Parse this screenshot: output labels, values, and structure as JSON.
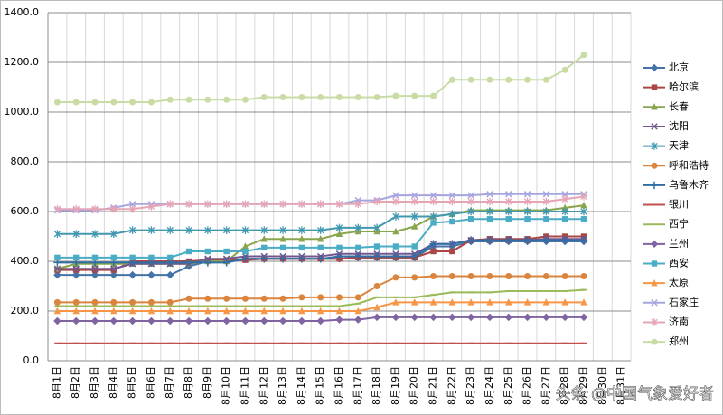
{
  "chart_data": {
    "type": "line",
    "categories": [
      "8月1日",
      "8月2日",
      "8月3日",
      "8月4日",
      "8月5日",
      "8月6日",
      "8月7日",
      "8月8日",
      "8月9日",
      "8月10日",
      "8月11日",
      "8月12日",
      "8月13日",
      "8月14日",
      "8月15日",
      "8月16日",
      "8月17日",
      "8月18日",
      "8月19日",
      "8月20日",
      "8月21日",
      "8月22日",
      "8月23日",
      "8月24日",
      "8月25日",
      "8月26日",
      "8月27日",
      "8月28日",
      "8月29日",
      "8月30日",
      "8月31日"
    ],
    "ylim": [
      0,
      1400
    ],
    "yticks": [
      {
        "value": 0,
        "label": "0.0"
      },
      {
        "value": 200,
        "label": "200.0"
      },
      {
        "value": 400,
        "label": "400.0"
      },
      {
        "value": 600,
        "label": "600.0"
      },
      {
        "value": 800,
        "label": "800.0"
      },
      {
        "value": 1000,
        "label": "1000.0"
      },
      {
        "value": 1200,
        "label": "1200.0"
      },
      {
        "value": 1400,
        "label": "1400.0"
      }
    ],
    "grid": true,
    "legend": "right",
    "watermark": "头条 @中国气象爱好者",
    "series": [
      {
        "name": "北京",
        "color": "#4572a7",
        "marker": "diamond",
        "values": [
          345,
          345,
          345,
          345,
          345,
          345,
          345,
          380,
          400,
          400,
          410,
          410,
          410,
          410,
          410,
          410,
          415,
          415,
          415,
          415,
          460,
          460,
          480,
          480,
          480,
          480,
          480,
          480,
          480,
          null,
          null
        ]
      },
      {
        "name": "哈尔滨",
        "color": "#aa4643",
        "marker": "square",
        "values": [
          365,
          365,
          365,
          365,
          400,
          400,
          400,
          400,
          405,
          405,
          405,
          410,
          410,
          410,
          410,
          410,
          415,
          415,
          415,
          415,
          440,
          440,
          485,
          490,
          490,
          490,
          500,
          500,
          500,
          null,
          null
        ]
      },
      {
        "name": "长春",
        "color": "#89a54e",
        "marker": "triangle",
        "values": [
          370,
          390,
          390,
          390,
          390,
          390,
          390,
          390,
          400,
          400,
          460,
          490,
          490,
          490,
          490,
          510,
          520,
          520,
          520,
          540,
          580,
          590,
          605,
          605,
          605,
          605,
          605,
          615,
          625,
          null,
          null
        ]
      },
      {
        "name": "沈阳",
        "color": "#71588f",
        "marker": "x",
        "values": [
          370,
          370,
          370,
          370,
          390,
          390,
          390,
          390,
          410,
          410,
          420,
          420,
          420,
          420,
          420,
          430,
          430,
          430,
          430,
          430,
          470,
          470,
          485,
          485,
          485,
          485,
          490,
          490,
          490,
          null,
          null
        ]
      },
      {
        "name": "天津",
        "color": "#4198af",
        "marker": "star",
        "values": [
          510,
          510,
          510,
          510,
          525,
          525,
          525,
          525,
          525,
          525,
          525,
          525,
          525,
          525,
          525,
          535,
          535,
          535,
          580,
          580,
          580,
          590,
          600,
          600,
          600,
          600,
          600,
          600,
          600,
          null,
          null
        ]
      },
      {
        "name": "呼和浩特",
        "color": "#db843d",
        "marker": "circle",
        "values": [
          235,
          235,
          235,
          235,
          235,
          235,
          235,
          250,
          250,
          250,
          250,
          250,
          250,
          255,
          255,
          255,
          255,
          300,
          335,
          335,
          340,
          340,
          340,
          340,
          340,
          340,
          340,
          340,
          340,
          null,
          null
        ]
      },
      {
        "name": "乌鲁木齐",
        "color": "#2f6fa5",
        "marker": "plus",
        "values": [
          395,
          395,
          395,
          395,
          395,
          395,
          395,
          395,
          395,
          395,
          410,
          410,
          410,
          410,
          410,
          420,
          420,
          420,
          420,
          420,
          470,
          470,
          485,
          485,
          485,
          485,
          485,
          485,
          485,
          null,
          null
        ]
      },
      {
        "name": "银川",
        "color": "#c0504d",
        "marker": "dash",
        "values": [
          70,
          70,
          70,
          70,
          70,
          70,
          70,
          70,
          70,
          70,
          70,
          70,
          70,
          70,
          70,
          70,
          70,
          70,
          70,
          70,
          70,
          70,
          70,
          70,
          70,
          70,
          70,
          70,
          70,
          null,
          null
        ]
      },
      {
        "name": "西宁",
        "color": "#9bbb59",
        "marker": "dash",
        "values": [
          220,
          220,
          220,
          220,
          220,
          220,
          220,
          220,
          220,
          220,
          220,
          220,
          220,
          220,
          220,
          220,
          230,
          255,
          255,
          255,
          265,
          275,
          275,
          275,
          280,
          280,
          280,
          280,
          285,
          null,
          null
        ]
      },
      {
        "name": "兰州",
        "color": "#8064a2",
        "marker": "diamond",
        "values": [
          160,
          160,
          160,
          160,
          160,
          160,
          160,
          160,
          160,
          160,
          160,
          160,
          160,
          160,
          160,
          165,
          165,
          175,
          175,
          175,
          175,
          175,
          175,
          175,
          175,
          175,
          175,
          175,
          175,
          null,
          null
        ]
      },
      {
        "name": "西安",
        "color": "#4bacc6",
        "marker": "square",
        "values": [
          415,
          415,
          415,
          415,
          415,
          415,
          415,
          440,
          440,
          440,
          440,
          455,
          455,
          455,
          455,
          455,
          455,
          460,
          460,
          460,
          555,
          560,
          570,
          570,
          570,
          570,
          570,
          570,
          570,
          null,
          null
        ]
      },
      {
        "name": "太原",
        "color": "#f79646",
        "marker": "triangle",
        "values": [
          200,
          200,
          200,
          200,
          200,
          200,
          200,
          200,
          200,
          200,
          200,
          200,
          200,
          200,
          200,
          200,
          200,
          215,
          235,
          235,
          235,
          235,
          235,
          235,
          235,
          235,
          235,
          235,
          235,
          null,
          null
        ]
      },
      {
        "name": "石家庄",
        "color": "#a5a5e0",
        "marker": "x",
        "values": [
          605,
          605,
          605,
          615,
          630,
          630,
          630,
          630,
          630,
          630,
          630,
          630,
          630,
          630,
          630,
          630,
          645,
          645,
          665,
          665,
          665,
          665,
          665,
          670,
          670,
          670,
          670,
          670,
          670,
          null,
          null
        ]
      },
      {
        "name": "济南",
        "color": "#e6a5b5",
        "marker": "star",
        "values": [
          610,
          610,
          610,
          610,
          610,
          620,
          630,
          630,
          630,
          630,
          630,
          630,
          630,
          630,
          630,
          630,
          630,
          640,
          640,
          640,
          640,
          640,
          640,
          640,
          640,
          640,
          640,
          650,
          660,
          null,
          null
        ]
      },
      {
        "name": "郑州",
        "color": "#c9dca5",
        "marker": "circle",
        "values": [
          1040,
          1040,
          1040,
          1040,
          1040,
          1040,
          1050,
          1050,
          1050,
          1050,
          1050,
          1060,
          1060,
          1060,
          1060,
          1060,
          1060,
          1060,
          1065,
          1065,
          1065,
          1130,
          1130,
          1130,
          1130,
          1130,
          1130,
          1170,
          1230,
          null,
          null
        ]
      }
    ]
  }
}
